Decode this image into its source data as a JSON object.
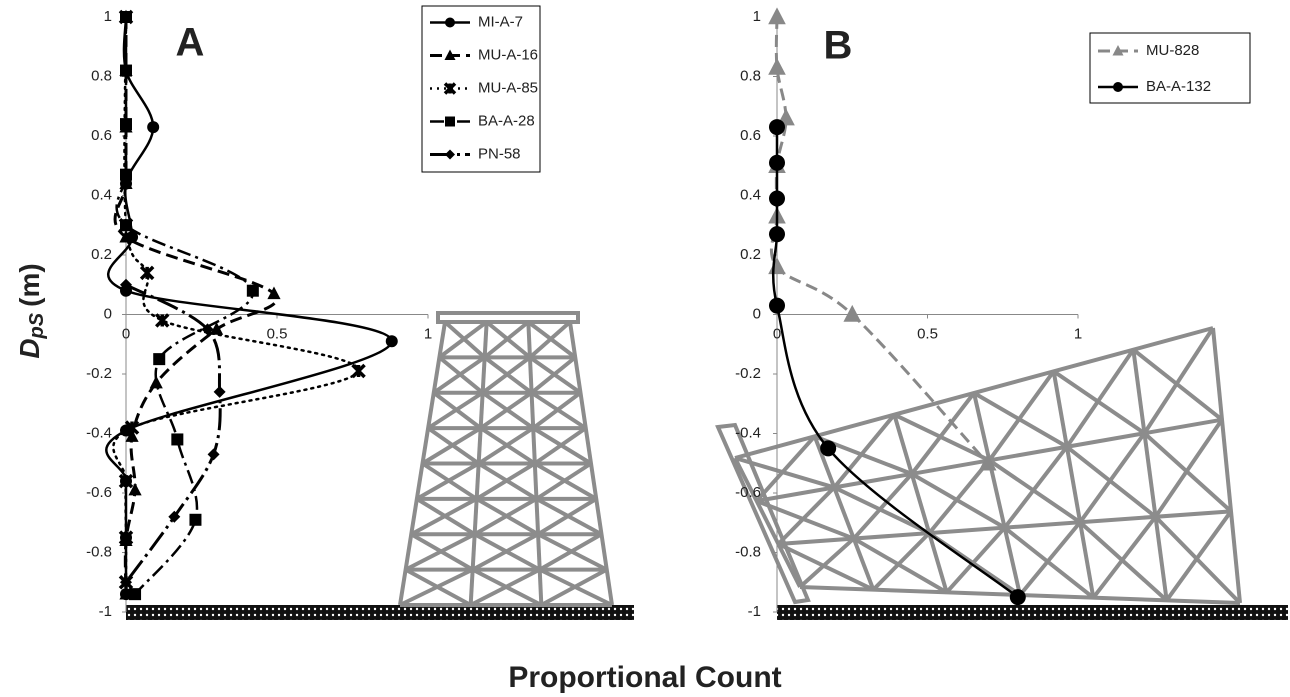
{
  "chart_data": [
    {
      "type": "line",
      "title": "A",
      "xlim": [
        0,
        1
      ],
      "ylim": [
        -1,
        1
      ],
      "xticks": [
        0,
        0.5,
        1
      ],
      "yticks": [
        -1,
        -0.8,
        -0.6,
        -0.4,
        -0.2,
        0,
        0.2,
        0.4,
        0.6,
        0.8,
        1
      ],
      "series": [
        {
          "name": "MI-A-7",
          "color": "#000000",
          "marker": "circle",
          "dash": "solid",
          "x": [
            0,
            0,
            0.09,
            0,
            0.02,
            0,
            0.88,
            0,
            0,
            0,
            0
          ],
          "values": [
            1,
            0.82,
            0.63,
            0.44,
            0.26,
            0.08,
            -0.09,
            -0.39,
            -0.56,
            -0.75,
            -0.94
          ]
        },
        {
          "name": "MU-A-16",
          "color": "#000000",
          "marker": "triangle",
          "dash": "dash",
          "x": [
            0,
            0,
            0,
            0,
            0,
            0.49,
            0.3,
            0.1,
            0.02,
            0.03,
            0,
            0
          ],
          "values": [
            1,
            0.82,
            0.63,
            0.44,
            0.26,
            0.07,
            -0.05,
            -0.23,
            -0.41,
            -0.59,
            -0.76,
            -0.94
          ]
        },
        {
          "name": "MU-A-85",
          "color": "#000000",
          "marker": "cross",
          "dash": "dot",
          "x": [
            0,
            0,
            0.07,
            0.12,
            0.77,
            0.02,
            0,
            0,
            0
          ],
          "values": [
            1,
            0.3,
            0.14,
            -0.02,
            -0.19,
            -0.38,
            -0.56,
            -0.75,
            -0.9
          ]
        },
        {
          "name": "BA-A-28",
          "color": "#000000",
          "marker": "square",
          "dash": "dashdot",
          "x": [
            0,
            0,
            0,
            0,
            0,
            0.42,
            0.11,
            0.17,
            0.23,
            0.03
          ],
          "values": [
            1,
            0.82,
            0.64,
            0.47,
            0.3,
            0.08,
            -0.15,
            -0.42,
            -0.69,
            -0.94
          ]
        },
        {
          "name": "PN-58",
          "color": "#000000",
          "marker": "diamond",
          "dash": "longdashdot",
          "x": [
            0,
            0.27,
            0.31,
            0.29,
            0.16,
            0
          ],
          "values": [
            0.1,
            -0.05,
            -0.26,
            -0.47,
            -0.68,
            -0.9
          ]
        }
      ]
    },
    {
      "type": "line",
      "title": "B",
      "xlim": [
        0,
        1
      ],
      "ylim": [
        -1,
        1
      ],
      "xticks": [
        0,
        0.5,
        1
      ],
      "yticks": [
        -1,
        -0.8,
        -0.6,
        -0.4,
        -0.2,
        0,
        0.2,
        0.4,
        0.6,
        0.8,
        1
      ],
      "series": [
        {
          "name": "MU-828",
          "color": "#888888",
          "marker": "triangle",
          "dash": "dash",
          "x": [
            0,
            0,
            0.03,
            0,
            0,
            0,
            0.25,
            0.7
          ],
          "values": [
            1,
            0.83,
            0.66,
            0.5,
            0.33,
            0.16,
            0,
            -0.5
          ]
        },
        {
          "name": "BA-A-132",
          "color": "#000000",
          "marker": "circle",
          "dash": "solid",
          "x": [
            0,
            0,
            0,
            0,
            0,
            0.17,
            0.8
          ],
          "values": [
            0.63,
            0.51,
            0.39,
            0.27,
            0.03,
            -0.45,
            -0.95
          ]
        }
      ]
    }
  ],
  "xlabel": "Proportional Count",
  "ylabel_main": "D",
  "ylabel_sub": "pS",
  "ylabel_unit": "(m)"
}
